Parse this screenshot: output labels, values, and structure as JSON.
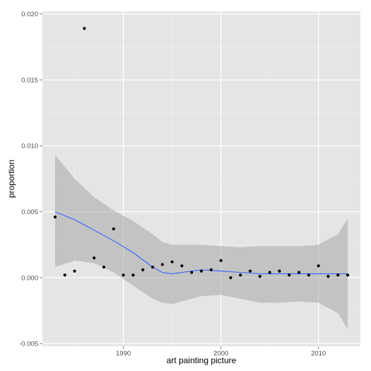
{
  "chart_data": {
    "type": "scatter",
    "xlabel": "art painting picture",
    "ylabel": "proportion",
    "xlim": [
      1981.7,
      2014.3
    ],
    "ylim": [
      -0.0052,
      0.0202
    ],
    "x_ticks": [
      1990,
      2000,
      2010
    ],
    "x_tick_labels": [
      "1990",
      "2000",
      "2010"
    ],
    "y_ticks": [
      -0.005,
      0.0,
      0.005,
      0.01,
      0.015,
      0.02
    ],
    "y_tick_labels": [
      "-0.005",
      "0.000",
      "0.005",
      "0.010",
      "0.015",
      "0.020"
    ],
    "grid": true,
    "points": {
      "x": [
        1983,
        1984,
        1985,
        1986,
        1987,
        1988,
        1989,
        1990,
        1991,
        1992,
        1993,
        1994,
        1995,
        1996,
        1997,
        1998,
        1999,
        2000,
        2001,
        2002,
        2003,
        2004,
        2005,
        2006,
        2007,
        2008,
        2009,
        2010,
        2011,
        2012,
        2013
      ],
      "y": [
        0.0046,
        0.0002,
        0.0005,
        0.0189,
        0.0015,
        0.0008,
        0.0037,
        0.0002,
        0.0002,
        0.0006,
        0.0008,
        0.001,
        0.0012,
        0.0009,
        0.0004,
        0.0005,
        0.0006,
        0.0013,
        0.0,
        0.0002,
        0.0005,
        0.0001,
        0.0004,
        0.0005,
        0.0002,
        0.0004,
        0.0002,
        0.0009,
        0.0001,
        0.0002,
        0.0002
      ]
    },
    "smooth": {
      "x": [
        1983,
        1985,
        1987,
        1989,
        1991,
        1993,
        1994,
        1995,
        1996,
        1998,
        2000,
        2002,
        2004,
        2006,
        2008,
        2010,
        2012,
        2013
      ],
      "y": [
        0.005,
        0.0044,
        0.0036,
        0.0028,
        0.0019,
        0.0008,
        0.0004,
        0.0003,
        0.0004,
        0.0006,
        0.0005,
        0.0004,
        0.0003,
        0.0003,
        0.0003,
        0.0003,
        0.0003,
        0.0003
      ],
      "lower": [
        0.0008,
        0.0013,
        0.0011,
        0.0004,
        -0.0006,
        -0.0016,
        -0.0019,
        -0.002,
        -0.0018,
        -0.0014,
        -0.0013,
        -0.0016,
        -0.0019,
        -0.0019,
        -0.0018,
        -0.0019,
        -0.0027,
        -0.0039
      ],
      "upper": [
        0.0093,
        0.0075,
        0.0061,
        0.0051,
        0.0043,
        0.0033,
        0.0027,
        0.0025,
        0.0025,
        0.0025,
        0.0024,
        0.0023,
        0.0024,
        0.0024,
        0.0024,
        0.0025,
        0.0033,
        0.0045
      ]
    },
    "colors": {
      "panel": "#e5e5e5",
      "grid_major": "#ffffff",
      "grid_minor": "#f2f2f2",
      "point": "#000000",
      "line": "#3366ff",
      "ribbon": "#999999"
    }
  }
}
